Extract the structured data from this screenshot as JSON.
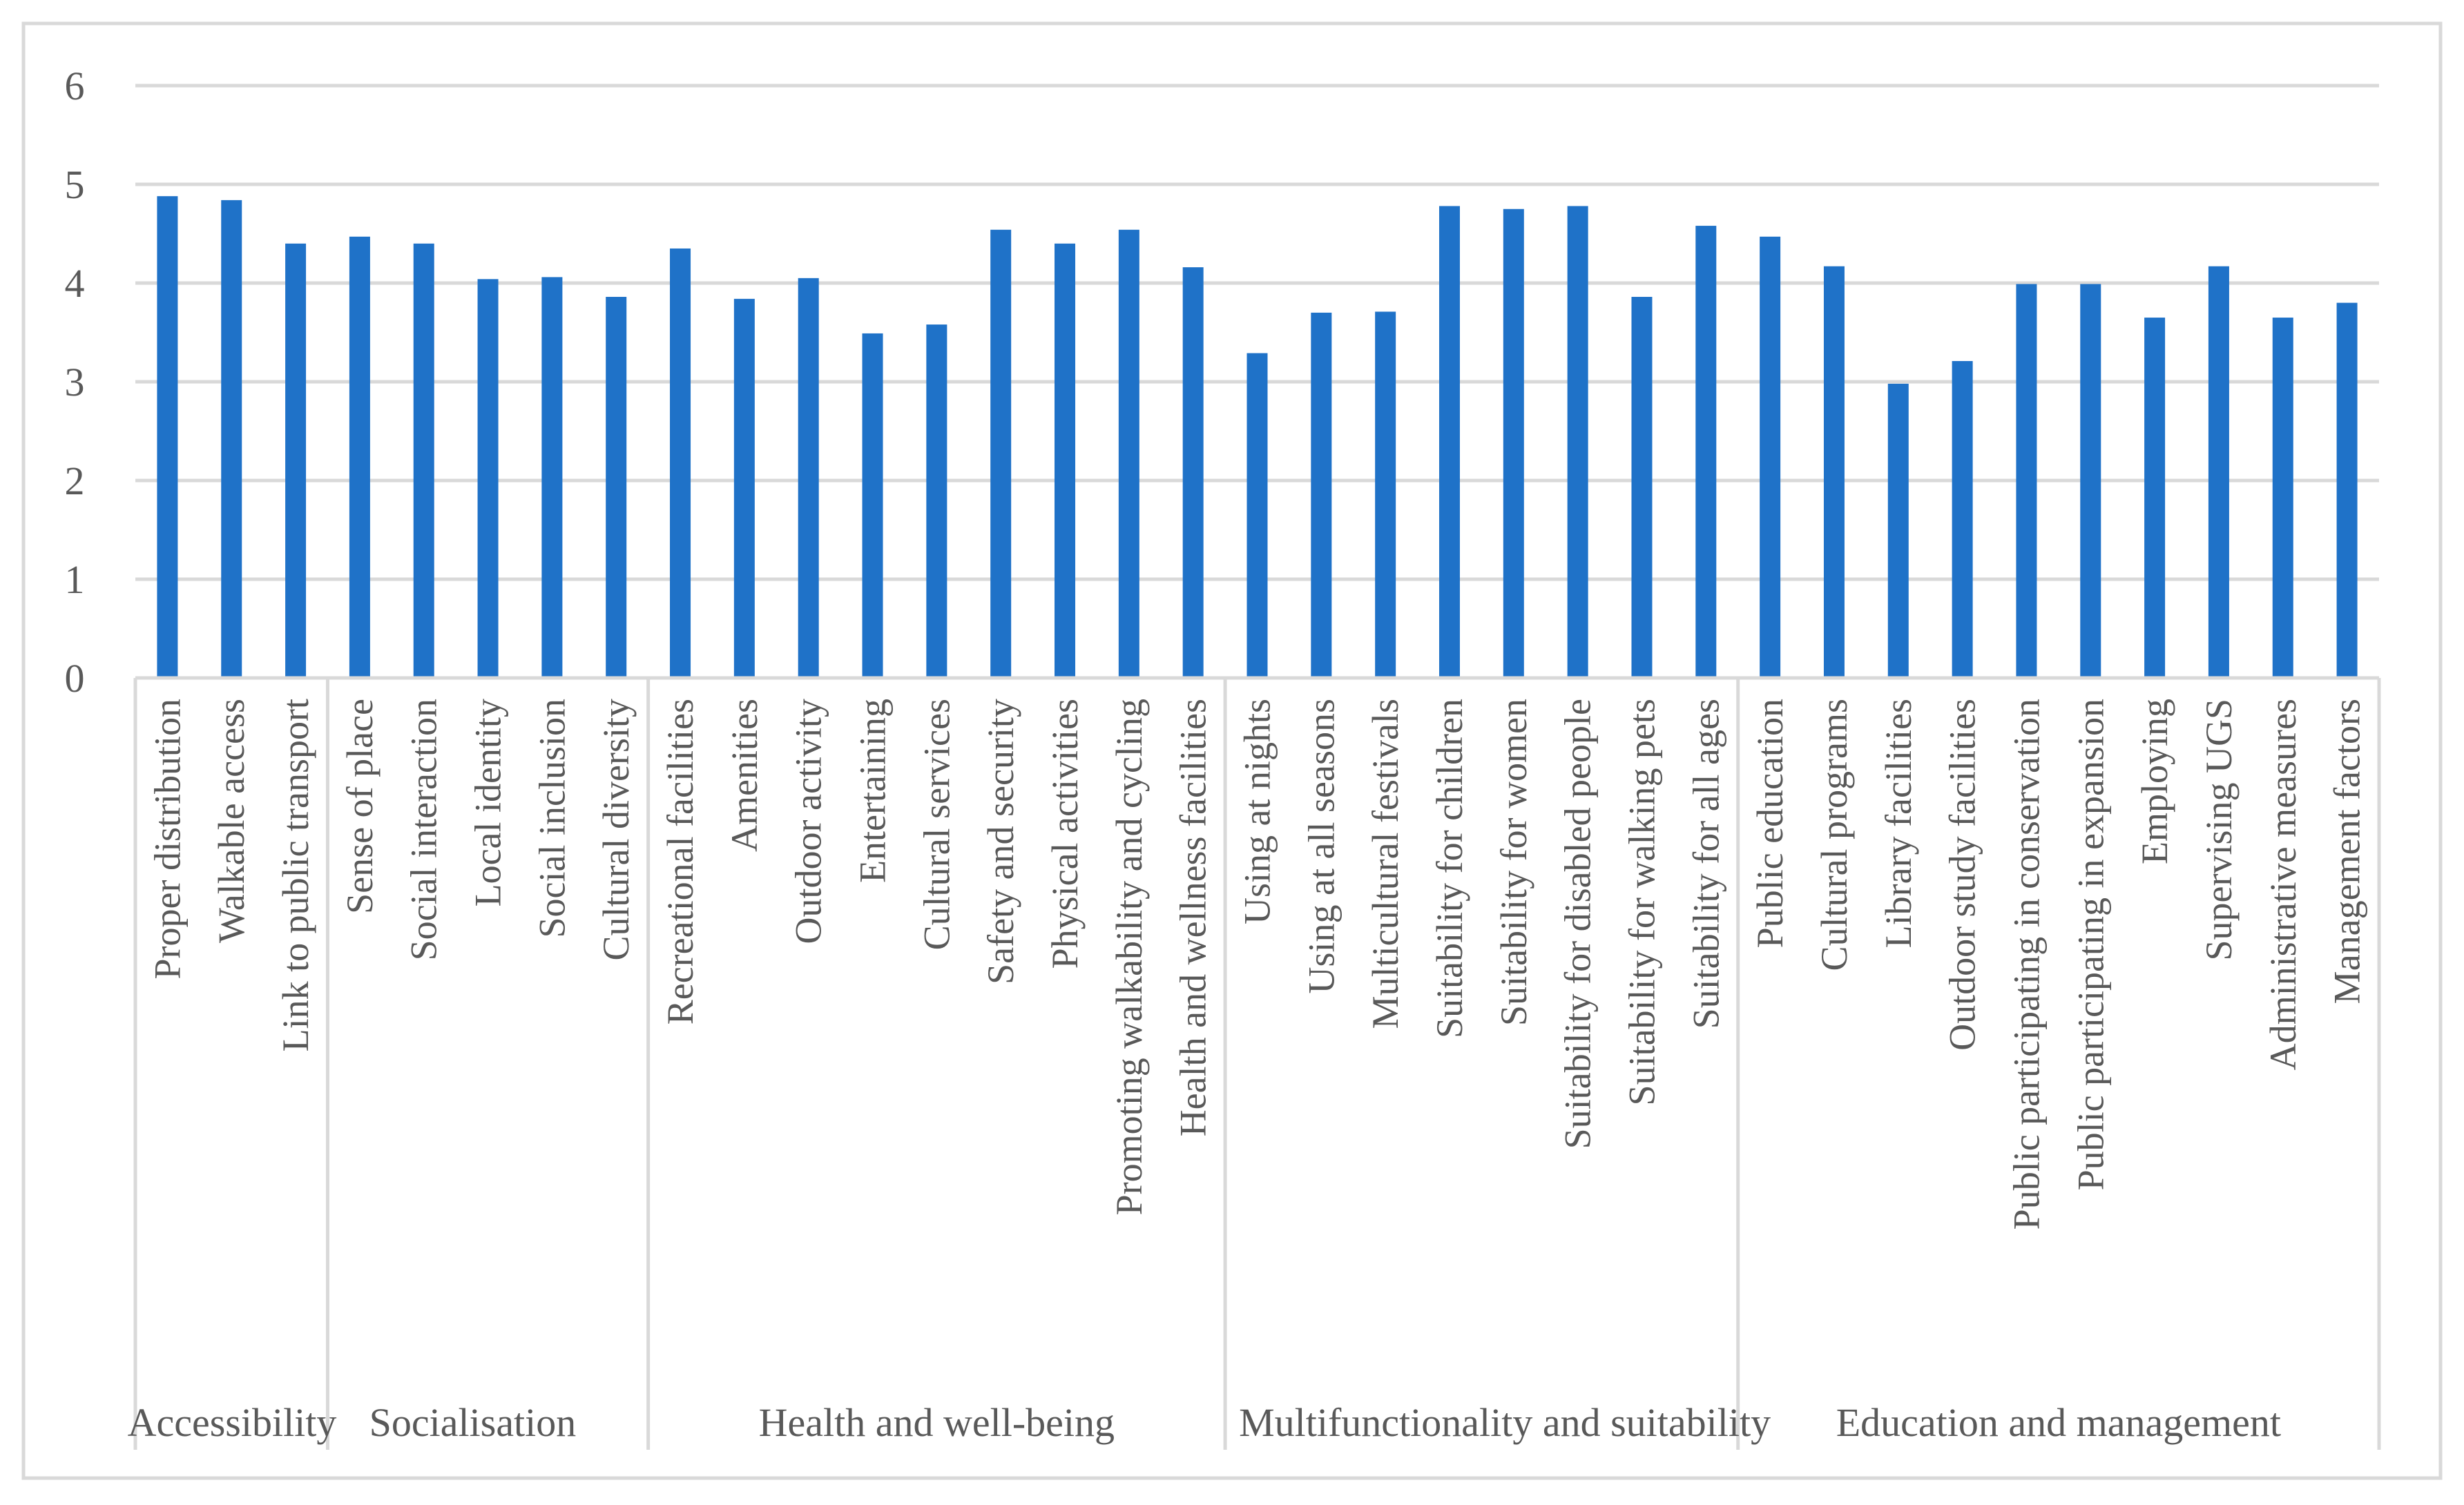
{
  "chart_data": {
    "type": "bar",
    "title": "",
    "xlabel": "",
    "ylabel": "",
    "ylim": [
      0,
      6
    ],
    "yticks": [
      0,
      1,
      2,
      3,
      4,
      5,
      6
    ],
    "grid": true,
    "legend": "none",
    "bar_color": "#1F72C8",
    "categories": [
      "Proper distribution",
      "Walkable access",
      "Link to public transport",
      "Sense of place",
      "Social interaction",
      "Local identity",
      "Social inclusion",
      "Cultural diversity",
      "Recreational facilities",
      "Amenities",
      "Outdoor activity",
      "Entertaining",
      "Cultural services",
      "Safety and security",
      "Physical activities",
      "Promoting walkability and cycling",
      "Health and wellness  facilities",
      "Using at nights",
      "Using at all seasons",
      "Multicultural festivals",
      "Suitability for children",
      "Suitability for women",
      "Suitability for disabled people",
      "Suitability for walking pets",
      "Suitability for all ages",
      "Public education",
      "Cultural programs",
      "Library facilities",
      "Outdoor study facilities",
      "Public participating in conservation",
      "Public participating in expansion",
      "Employing",
      "Supervising UGS",
      "Administrative measures",
      "Management factors"
    ],
    "values": [
      4.88,
      4.84,
      4.4,
      4.47,
      4.4,
      4.04,
      4.06,
      3.86,
      4.35,
      3.84,
      4.05,
      3.49,
      3.58,
      4.54,
      4.4,
      4.54,
      4.16,
      3.29,
      3.7,
      3.71,
      4.78,
      4.75,
      4.78,
      3.86,
      4.58,
      4.47,
      4.17,
      2.98,
      3.21,
      3.99,
      3.99,
      3.65,
      4.17,
      3.65,
      3.8
    ],
    "groups": [
      {
        "name": "Accessibility",
        "count": 3
      },
      {
        "name": "Socialisation",
        "count": 5
      },
      {
        "name": "Health and well-being",
        "count": 9
      },
      {
        "name": "Multifunctionality and suitability",
        "count": 8
      },
      {
        "name": "Education and management",
        "count": 10
      }
    ]
  }
}
